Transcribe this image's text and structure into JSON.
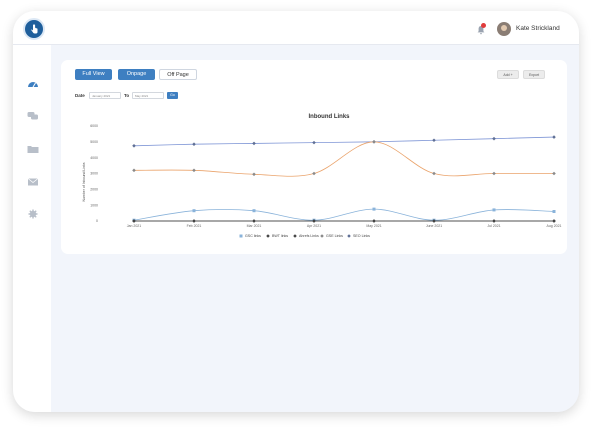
{
  "header": {
    "user_name": "Kate Strickland",
    "notification_icon": "bell-icon",
    "avatar": "user-avatar"
  },
  "sidebar": {
    "items": [
      {
        "icon": "dashboard-icon"
      },
      {
        "icon": "chat-icon"
      },
      {
        "icon": "folder-icon"
      },
      {
        "icon": "mail-icon"
      },
      {
        "icon": "settings-icon"
      }
    ]
  },
  "tabs": {
    "full_view": "Full View",
    "onpage": "Onpage",
    "off_page": "Off Page"
  },
  "actions": {
    "add": "Add +",
    "export": "Export"
  },
  "filters": {
    "date_label": "Date",
    "to_label": "To",
    "from_value": "January 2021",
    "to_value": "May 2021",
    "go": "Go"
  },
  "colors": {
    "accent": "#3e7fc1",
    "series_top": "#7f96d6",
    "series_mid": "#eaa36b",
    "series_low": "#8ab3da",
    "series_flat": "#444444"
  },
  "chart_data": {
    "type": "line",
    "title": "Inbound Links",
    "ylabel": "Number of Inbound Links",
    "xlabel": "",
    "yticks": [
      "6000",
      "5000",
      "4000",
      "3000",
      "2000",
      "1000",
      "0"
    ],
    "ylim": [
      0,
      6000
    ],
    "grid": false,
    "legend_position": "bottom",
    "categories": [
      "Jan 2021",
      "Feb 2021",
      "Mar 2021",
      "Apr 2021",
      "May 2021",
      "June 2021",
      "Jul 2021",
      "Aug 2021"
    ],
    "series": [
      {
        "name": "SEO Links",
        "marker": "diamond",
        "color": "#7f96d6",
        "values": [
          4750,
          4850,
          4900,
          4950,
          5000,
          5100,
          5200,
          5300
        ]
      },
      {
        "name": "GSE Links",
        "marker": "diamond",
        "color": "#eaa36b",
        "values": [
          3200,
          3200,
          2950,
          3000,
          5000,
          3000,
          3000,
          3000
        ]
      },
      {
        "name": "GSC links",
        "marker": "square",
        "color": "#8ab3da",
        "values": [
          50,
          650,
          650,
          50,
          750,
          50,
          700,
          600
        ]
      },
      {
        "name": "BWT links",
        "marker": "diamond",
        "color": "#444444",
        "values": [
          0,
          0,
          0,
          0,
          0,
          0,
          0,
          0
        ]
      },
      {
        "name": "Ahrefs Links",
        "marker": "diamond",
        "color": "#444444",
        "values": [
          0,
          0,
          0,
          0,
          0,
          0,
          0,
          0
        ]
      }
    ],
    "legend_order": [
      2,
      3,
      4,
      1,
      0
    ]
  }
}
